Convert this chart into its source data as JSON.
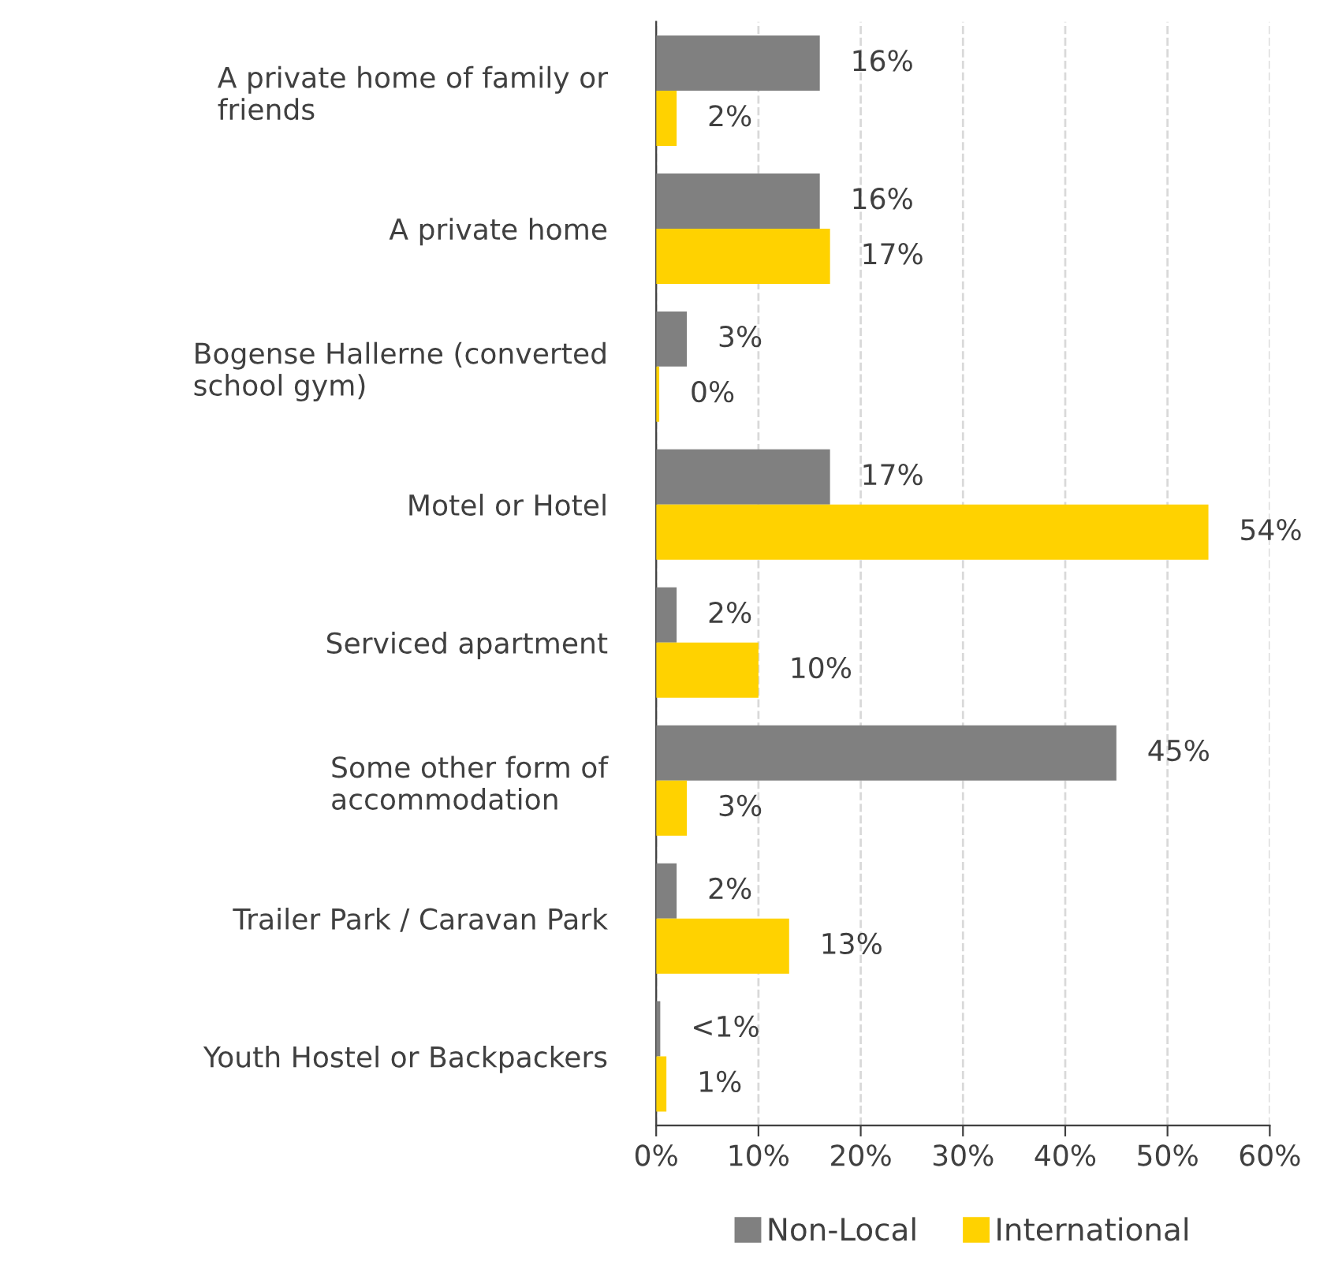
{
  "chart_data": {
    "type": "bar",
    "orientation": "horizontal",
    "categories": [
      "A private home of family or\nfriends",
      "A private home",
      "Bogense Hallerne (converted\nschool gym)",
      "Motel or Hotel",
      "Serviced apartment",
      "Some other form of\naccommodation",
      "Trailer Park / Caravan Park",
      "Youth Hostel or Backpackers"
    ],
    "series": [
      {
        "name": "Non-Local",
        "color": "#808080",
        "values": [
          16,
          16,
          3,
          17,
          2,
          45,
          2,
          0.4
        ],
        "value_labels": [
          "16%",
          "16%",
          "3%",
          "17%",
          "2%",
          "45%",
          "2%",
          "<1%"
        ]
      },
      {
        "name": "International",
        "color": "#ffd200",
        "values": [
          2,
          17,
          0.3,
          54,
          10,
          3,
          13,
          1
        ],
        "value_labels": [
          "2%",
          "17%",
          "0%",
          "54%",
          "10%",
          "3%",
          "13%",
          "1%"
        ]
      }
    ],
    "xlim": [
      0,
      60
    ],
    "xticks": [
      {
        "value": 0,
        "label": "0%"
      },
      {
        "value": 10,
        "label": "10%"
      },
      {
        "value": 20,
        "label": "20%"
      },
      {
        "value": 30,
        "label": "30%"
      },
      {
        "value": 40,
        "label": "40%"
      },
      {
        "value": 50,
        "label": "50%"
      },
      {
        "value": 60,
        "label": "60%"
      }
    ],
    "grid": "x",
    "legend": "bottom"
  }
}
